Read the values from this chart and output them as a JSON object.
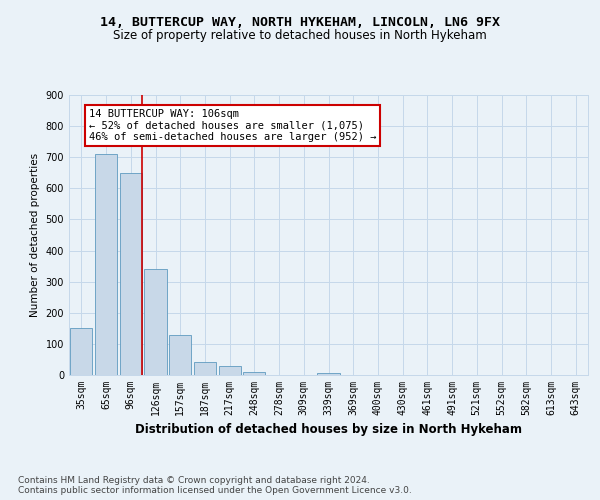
{
  "title1": "14, BUTTERCUP WAY, NORTH HYKEHAM, LINCOLN, LN6 9FX",
  "title2": "Size of property relative to detached houses in North Hykeham",
  "xlabel": "Distribution of detached houses by size in North Hykeham",
  "ylabel": "Number of detached properties",
  "categories": [
    "35sqm",
    "65sqm",
    "96sqm",
    "126sqm",
    "157sqm",
    "187sqm",
    "217sqm",
    "248sqm",
    "278sqm",
    "309sqm",
    "339sqm",
    "369sqm",
    "400sqm",
    "430sqm",
    "461sqm",
    "491sqm",
    "521sqm",
    "552sqm",
    "582sqm",
    "613sqm",
    "643sqm"
  ],
  "values": [
    150,
    710,
    650,
    340,
    130,
    42,
    28,
    10,
    0,
    0,
    8,
    0,
    0,
    0,
    0,
    0,
    0,
    0,
    0,
    0,
    0
  ],
  "bar_color": "#c8d8e8",
  "bar_edge_color": "#5f9bc0",
  "grid_color": "#c5d8ea",
  "background_color": "#eaf2f8",
  "vline_x_index": 2,
  "vline_color": "#cc0000",
  "annotation_text": "14 BUTTERCUP WAY: 106sqm\n← 52% of detached houses are smaller (1,075)\n46% of semi-detached houses are larger (952) →",
  "annotation_box_color": "#ffffff",
  "annotation_box_edge": "#cc0000",
  "ylim": [
    0,
    900
  ],
  "yticks": [
    0,
    100,
    200,
    300,
    400,
    500,
    600,
    700,
    800,
    900
  ],
  "footnote": "Contains HM Land Registry data © Crown copyright and database right 2024.\nContains public sector information licensed under the Open Government Licence v3.0.",
  "title1_fontsize": 9.5,
  "title2_fontsize": 8.5,
  "xlabel_fontsize": 8.5,
  "ylabel_fontsize": 7.5,
  "tick_fontsize": 7,
  "footnote_fontsize": 6.5,
  "annotation_fontsize": 7.5
}
